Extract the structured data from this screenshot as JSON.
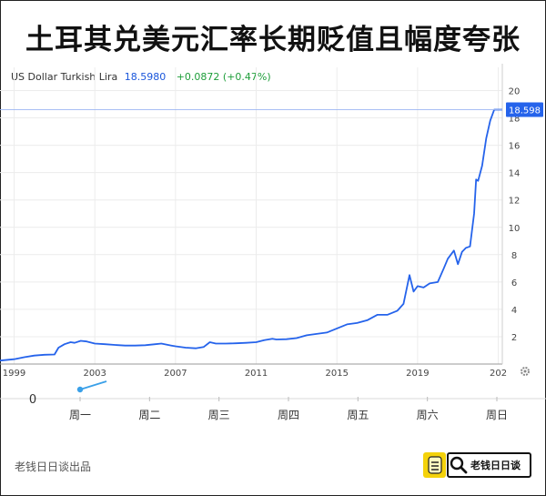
{
  "header": {
    "title": "土耳其兑美元汇率长期贬值且幅度夸张"
  },
  "legend": {
    "name": "US Dollar Turkish Lira",
    "price": "18.5980",
    "change": "+0.0872 (+0.47%)"
  },
  "current_label": "18.598",
  "colors": {
    "line": "#2563eb",
    "price": "#1a56db",
    "change": "#1e9e3a",
    "badge": "#2563eb"
  },
  "chart_data": [
    {
      "type": "line",
      "title": "",
      "xlabel": "",
      "ylabel": "",
      "x_ticks": [
        "1999",
        "2003",
        "2007",
        "2011",
        "2015",
        "2019",
        "202"
      ],
      "y_ticks": [
        2,
        4,
        6,
        8,
        10,
        12,
        14,
        16,
        18,
        20
      ],
      "xlim": [
        1998.3,
        2023.2
      ],
      "ylim": [
        0,
        20.5
      ],
      "grid": true,
      "legend": "top-left",
      "series": [
        {
          "name": "US Dollar Turkish Lira",
          "x": [
            1998.3,
            1999,
            1999.5,
            2000,
            2000.5,
            2001,
            2001.2,
            2001.5,
            2001.8,
            2002,
            2002.3,
            2002.6,
            2003,
            2003.5,
            2004,
            2004.5,
            2005,
            2005.5,
            2006,
            2006.3,
            2006.8,
            2007,
            2007.5,
            2008,
            2008.4,
            2008.7,
            2009,
            2009.5,
            2010,
            2010.5,
            2011,
            2011.4,
            2011.8,
            2012,
            2012.5,
            2013,
            2013.5,
            2014,
            2014.5,
            2015,
            2015.5,
            2016,
            2016.5,
            2017,
            2017.5,
            2018,
            2018.3,
            2018.6,
            2018.8,
            2019,
            2019.3,
            2019.6,
            2020,
            2020.3,
            2020.5,
            2020.8,
            2021,
            2021.2,
            2021.4,
            2021.6,
            2021.8,
            2021.9,
            2022,
            2022.2,
            2022.4,
            2022.6,
            2022.8,
            2023.2
          ],
          "values": [
            0.25,
            0.35,
            0.5,
            0.62,
            0.68,
            0.7,
            1.2,
            1.45,
            1.6,
            1.55,
            1.7,
            1.65,
            1.5,
            1.45,
            1.4,
            1.35,
            1.35,
            1.38,
            1.45,
            1.5,
            1.35,
            1.3,
            1.2,
            1.15,
            1.25,
            1.6,
            1.5,
            1.5,
            1.52,
            1.55,
            1.6,
            1.75,
            1.85,
            1.8,
            1.82,
            1.9,
            2.1,
            2.2,
            2.3,
            2.6,
            2.9,
            3.0,
            3.2,
            3.6,
            3.6,
            3.9,
            4.4,
            6.5,
            5.3,
            5.7,
            5.6,
            5.9,
            6.0,
            7.0,
            7.7,
            8.3,
            7.3,
            8.2,
            8.5,
            8.6,
            11.0,
            13.5,
            13.4,
            14.5,
            16.5,
            17.8,
            18.6,
            18.6
          ]
        }
      ]
    },
    {
      "type": "line",
      "title": "",
      "xlabel": "",
      "ylabel": "",
      "categories": [
        "周一",
        "周二",
        "周三",
        "周四",
        "周五",
        "周六",
        "周日"
      ],
      "y_ticks": [
        0
      ],
      "series": [
        {
          "name": "",
          "x": [
            0,
            0.38
          ],
          "values": [
            0,
            0.15
          ]
        }
      ]
    }
  ],
  "footer": {
    "credit": "老钱日日谈出品",
    "brand": "老钱日日谈"
  }
}
